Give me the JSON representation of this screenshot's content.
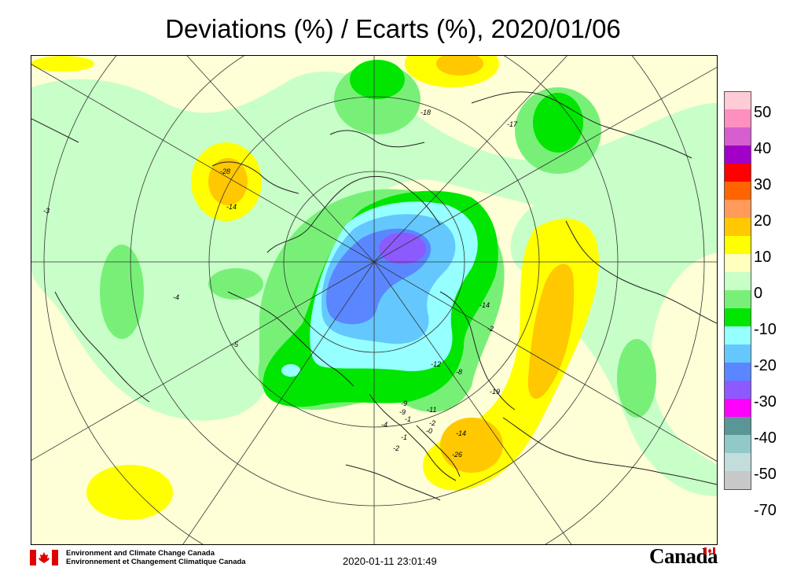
{
  "title": "Deviations (%) / Ecarts (%), 2020/01/06",
  "legend": {
    "labels": [
      "50",
      "40",
      "30",
      "20",
      "10",
      "0",
      "-10",
      "-20",
      "-30",
      "-40",
      "-50",
      "-70"
    ],
    "colors": [
      "#ffcbd7",
      "#ff8fbf",
      "#d65ecf",
      "#a200c8",
      "#ff0000",
      "#ff6400",
      "#ff9a5a",
      "#ffc800",
      "#ffff00",
      "#ffffbe",
      "#c8ffc8",
      "#78f078",
      "#00e600",
      "#96ffff",
      "#64c8ff",
      "#5a87ff",
      "#8c5aff",
      "#ff00ff",
      "#5a9696",
      "#91c8c8",
      "#c3dcdc",
      "#c8c8c8"
    ]
  },
  "contour_labels": [
    "-14",
    "-28",
    "-3",
    "-4",
    "-5",
    "-17",
    "-18",
    "-14",
    "-2",
    "-8",
    "-19",
    "-11",
    "-9",
    "-4",
    "-1",
    "-1",
    "-2",
    "-2",
    "-14",
    "-26",
    "-12",
    "-0",
    "-9"
  ],
  "footer": {
    "org_en": "Environment and Climate Change Canada",
    "org_fr": "Environnement et Changement Climatique Canada",
    "timestamp": "2020-01-11 23:01:49",
    "wordmark": "Canada"
  },
  "colors": {
    "yellow_light": "#feffd6",
    "green_light": "#c8ffc8",
    "green_mid": "#78f078",
    "green_strong": "#00e600",
    "cyan": "#96ffff",
    "blue_light": "#64c8ff",
    "blue": "#5a87ff",
    "purple": "#8c5aff",
    "yellow": "#ffff00",
    "orange": "#ffc800"
  }
}
